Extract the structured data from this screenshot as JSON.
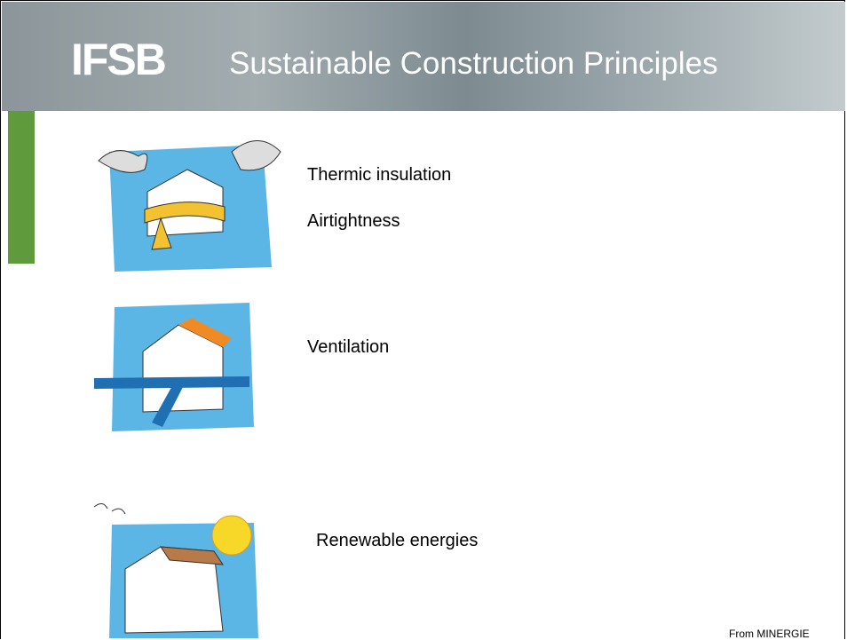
{
  "header": {
    "logo": "IFSB",
    "title": "Sustainable Construction Principles"
  },
  "items": [
    {
      "lines": [
        "Thermic insulation",
        "Airtightness"
      ]
    },
    {
      "lines": [
        "Ventilation"
      ]
    },
    {
      "lines": [
        "Renewable energies"
      ]
    }
  ],
  "source": "From MINERGIE"
}
